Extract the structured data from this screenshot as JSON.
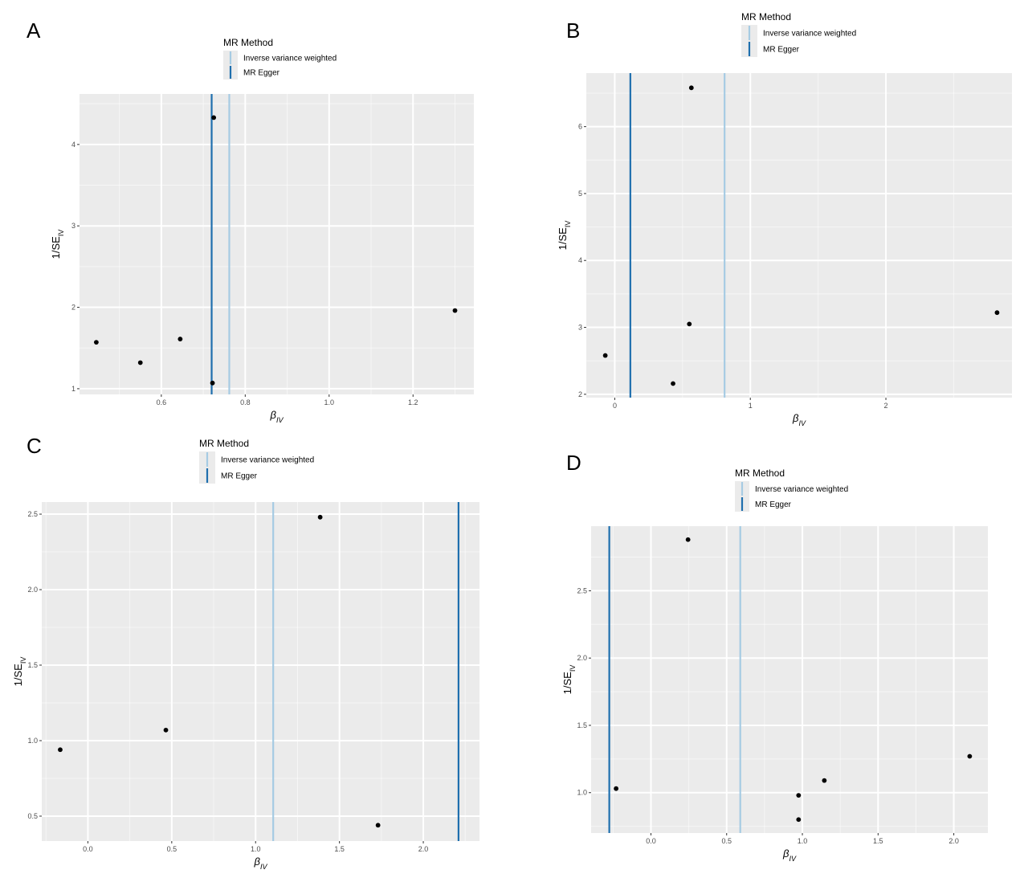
{
  "colors": {
    "ivw": "#a6cbe3",
    "egger": "#1f6fae",
    "panel_bg": "#ebebeb",
    "grid_major": "#ffffff",
    "point": "#000000"
  },
  "legend": {
    "title": "MR Method",
    "ivw_label": "Inverse variance weighted",
    "egger_label": "MR Egger"
  },
  "axis_labels": {
    "x_main": "β",
    "x_sub": "IV",
    "y_main": "1/SE",
    "y_sub": "IV"
  },
  "chart_data": [
    {
      "panel": "A",
      "type": "scatter",
      "xlim": [
        0.405,
        1.345
      ],
      "ylim": [
        0.93,
        4.62
      ],
      "x_ticks": [
        0.6,
        0.8,
        1.0,
        1.2
      ],
      "x_tick_labels": [
        "0.6",
        "0.8",
        "1.0",
        "1.2"
      ],
      "y_ticks": [
        1,
        2,
        3,
        4
      ],
      "y_tick_labels": [
        "1",
        "2",
        "3",
        "4"
      ],
      "points": [
        {
          "x": 0.445,
          "y": 1.57
        },
        {
          "x": 0.55,
          "y": 1.32
        },
        {
          "x": 0.645,
          "y": 1.61
        },
        {
          "x": 0.725,
          "y": 4.33
        },
        {
          "x": 0.722,
          "y": 1.07
        },
        {
          "x": 1.3,
          "y": 1.96
        }
      ],
      "ivw_beta": 0.762,
      "egger_beta": 0.72
    },
    {
      "panel": "B",
      "type": "scatter",
      "xlim": [
        -0.21,
        2.93
      ],
      "ylim": [
        1.95,
        6.8
      ],
      "x_ticks": [
        0,
        1,
        2
      ],
      "x_tick_labels": [
        "0",
        "1",
        "2"
      ],
      "y_ticks": [
        2,
        3,
        4,
        5,
        6
      ],
      "y_tick_labels": [
        "2",
        "3",
        "4",
        "5",
        "6"
      ],
      "points": [
        {
          "x": -0.07,
          "y": 2.58
        },
        {
          "x": 0.43,
          "y": 2.16
        },
        {
          "x": 0.55,
          "y": 3.05
        },
        {
          "x": 0.565,
          "y": 6.58
        },
        {
          "x": 2.82,
          "y": 3.22
        }
      ],
      "ivw_beta": 0.81,
      "egger_beta": 0.115
    },
    {
      "panel": "C",
      "type": "scatter",
      "xlim": [
        -0.275,
        2.335
      ],
      "ylim": [
        0.335,
        2.58
      ],
      "x_ticks": [
        0.0,
        0.5,
        1.0,
        1.5,
        2.0
      ],
      "x_tick_labels": [
        "0.0",
        "0.5",
        "1.0",
        "1.5",
        "2.0"
      ],
      "y_ticks": [
        0.5,
        1.0,
        1.5,
        2.0,
        2.5
      ],
      "y_tick_labels": [
        "0.5",
        "1.0",
        "1.5",
        "2.0",
        "2.5"
      ],
      "points": [
        {
          "x": -0.165,
          "y": 0.94
        },
        {
          "x": 0.465,
          "y": 1.07
        },
        {
          "x": 1.385,
          "y": 2.48
        },
        {
          "x": 1.73,
          "y": 0.44
        }
      ],
      "ivw_beta": 1.105,
      "egger_beta": 2.21
    },
    {
      "panel": "D",
      "type": "scatter",
      "xlim": [
        -0.395,
        2.225
      ],
      "ylim": [
        0.7,
        2.98
      ],
      "x_ticks": [
        0.0,
        0.5,
        1.0,
        1.5,
        2.0
      ],
      "x_tick_labels": [
        "0.0",
        "0.5",
        "1.0",
        "1.5",
        "2.0"
      ],
      "y_ticks": [
        1.0,
        1.5,
        2.0,
        2.5
      ],
      "y_tick_labels": [
        "1.0",
        "1.5",
        "2.0",
        "2.5"
      ],
      "points": [
        {
          "x": -0.23,
          "y": 1.03
        },
        {
          "x": 0.245,
          "y": 2.88
        },
        {
          "x": 0.975,
          "y": 0.98
        },
        {
          "x": 0.975,
          "y": 0.8
        },
        {
          "x": 1.145,
          "y": 1.09
        },
        {
          "x": 2.105,
          "y": 1.27
        }
      ],
      "ivw_beta": 0.59,
      "egger_beta": -0.275
    }
  ]
}
